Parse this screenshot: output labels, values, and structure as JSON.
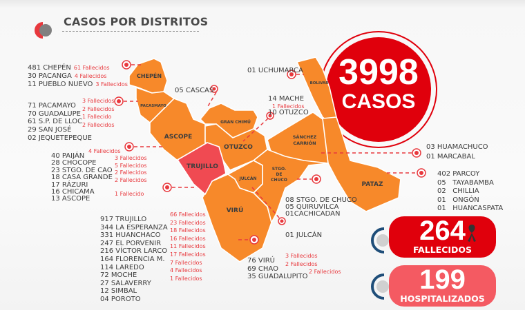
{
  "header": {
    "title": "CASOS POR DISTRITOS"
  },
  "totals": {
    "cases_number": "3998",
    "cases_label": "CASOS",
    "deaths_number": "264",
    "deaths_label": "FALLECIDOS",
    "hosp_number": "199",
    "hosp_label": "HOSPITALIZADOS"
  },
  "colors": {
    "province": "#f7892a",
    "highlight": "#f04a52",
    "red": "#e0000c",
    "pink": "#f45a62"
  },
  "map_labels": {
    "chepen": "CHEPÉN",
    "pacasmayo": "PACASMAYO",
    "ascope": "ASCOPE",
    "trujillo": "TRUJILLO",
    "gran_chimu": "GRAN CHIMÚ",
    "otuzco": "OTUZCO",
    "sanchez1": "SÁNCHEZ",
    "sanchez2": "CARRIÓN",
    "bolivar": "BOLIVAR",
    "pataz": "PATAZ",
    "stgo1": "STGO.",
    "stgo2": "DE",
    "stgo3": "CHUCO",
    "julcan": "JULCÁN",
    "viru": "VIRÚ"
  },
  "chepen": [
    {
      "t": "481 CHEPÉN",
      "f": "61 Fallecidos"
    },
    {
      "t": "30 PACANGA",
      "f": "4 Fallecidos"
    },
    {
      "t": "11 PUEBLO NUEVO",
      "f": "3 Fallecidos"
    }
  ],
  "pacasmayo": [
    {
      "t": "71 PACAMAYO",
      "f": "3 Fallecidos"
    },
    {
      "t": "70 GUADALUPE",
      "f": "2 Fallecidos"
    },
    {
      "t": "61 S.P. DE LLOC",
      "f": "1 Fallecido"
    },
    {
      "t": "29 SAN JOSÉ",
      "f": "2 Fallecidos"
    },
    {
      "t": "02 JEQUETEPEQUE",
      "f": ""
    }
  ],
  "ascope": [
    {
      "t": "40 PAIJÁN",
      "f": "4 Fallecidos"
    },
    {
      "t": "28 CHOCOPE",
      "f": "3 Fallecidos"
    },
    {
      "t": "23 STGO. DE CAO",
      "f": "5 Fallecidos"
    },
    {
      "t": "18 CASA GRANDE",
      "f": "2 Fallecidos"
    },
    {
      "t": "17 RÁZURI",
      "f": "2 Fallecidos"
    },
    {
      "t": "16 CHICAMA",
      "f": ""
    },
    {
      "t": "13 ASCOPE",
      "f": "1 Fallecido"
    }
  ],
  "trujillo": [
    {
      "t": "917 TRUJILLO",
      "f": "66 Fallecidos"
    },
    {
      "t": "344 LA ESPERANZA",
      "f": "23 Fallecidos"
    },
    {
      "t": "331 HUANCHACO",
      "f": "18 Fallecidos"
    },
    {
      "t": "247 EL PORVENIR",
      "f": "16 Fallecidos"
    },
    {
      "t": "216 VÍCTOR LARCO",
      "f": "11 Fallecidos"
    },
    {
      "t": "164 FLORENCIA M.",
      "f": "17 Fallecidos"
    },
    {
      "t": "114 LAREDO",
      "f": "7 Fallecidos"
    },
    {
      "t": "72 MOCHE",
      "f": "4 Fallecidos"
    },
    {
      "t": "27 SALAVERRY",
      "f": "1 Fallecidos"
    },
    {
      "t": "12 SIMBAL",
      "f": ""
    },
    {
      "t": "04 POROTO",
      "f": ""
    }
  ],
  "gran_chimu": {
    "t": "05 CASCAS"
  },
  "bolivar": {
    "t": "01 UCHUMARCA"
  },
  "otuzco": {
    "mache": "14  MACHE",
    "mache_f": "1 Fallecidos",
    "otuzco": "10 OTUZCO"
  },
  "stgo_chuco": [
    "08 STGO. DE CHUCO",
    "05 QUIRUVILCA",
    "01CACHICADAN"
  ],
  "julcan": {
    "t": "01 JULCÁN"
  },
  "viru": [
    {
      "t": "76 VIRÚ",
      "f": "3 Fallecidos"
    },
    {
      "t": "69 CHAO",
      "f": "2 Fallecidos"
    },
    {
      "t": "35 GUADALUPITO",
      "f": "2 Fallecidos"
    }
  ],
  "sanchez_carrion": [
    "03 HUAMACHUCO",
    "01 MARCABAL"
  ],
  "pataz": [
    "402 PARCOY",
    "05   TAYABAMBA",
    "02   CHILLIA",
    "01   ONGÓN",
    "01   HUANCASPATA"
  ]
}
